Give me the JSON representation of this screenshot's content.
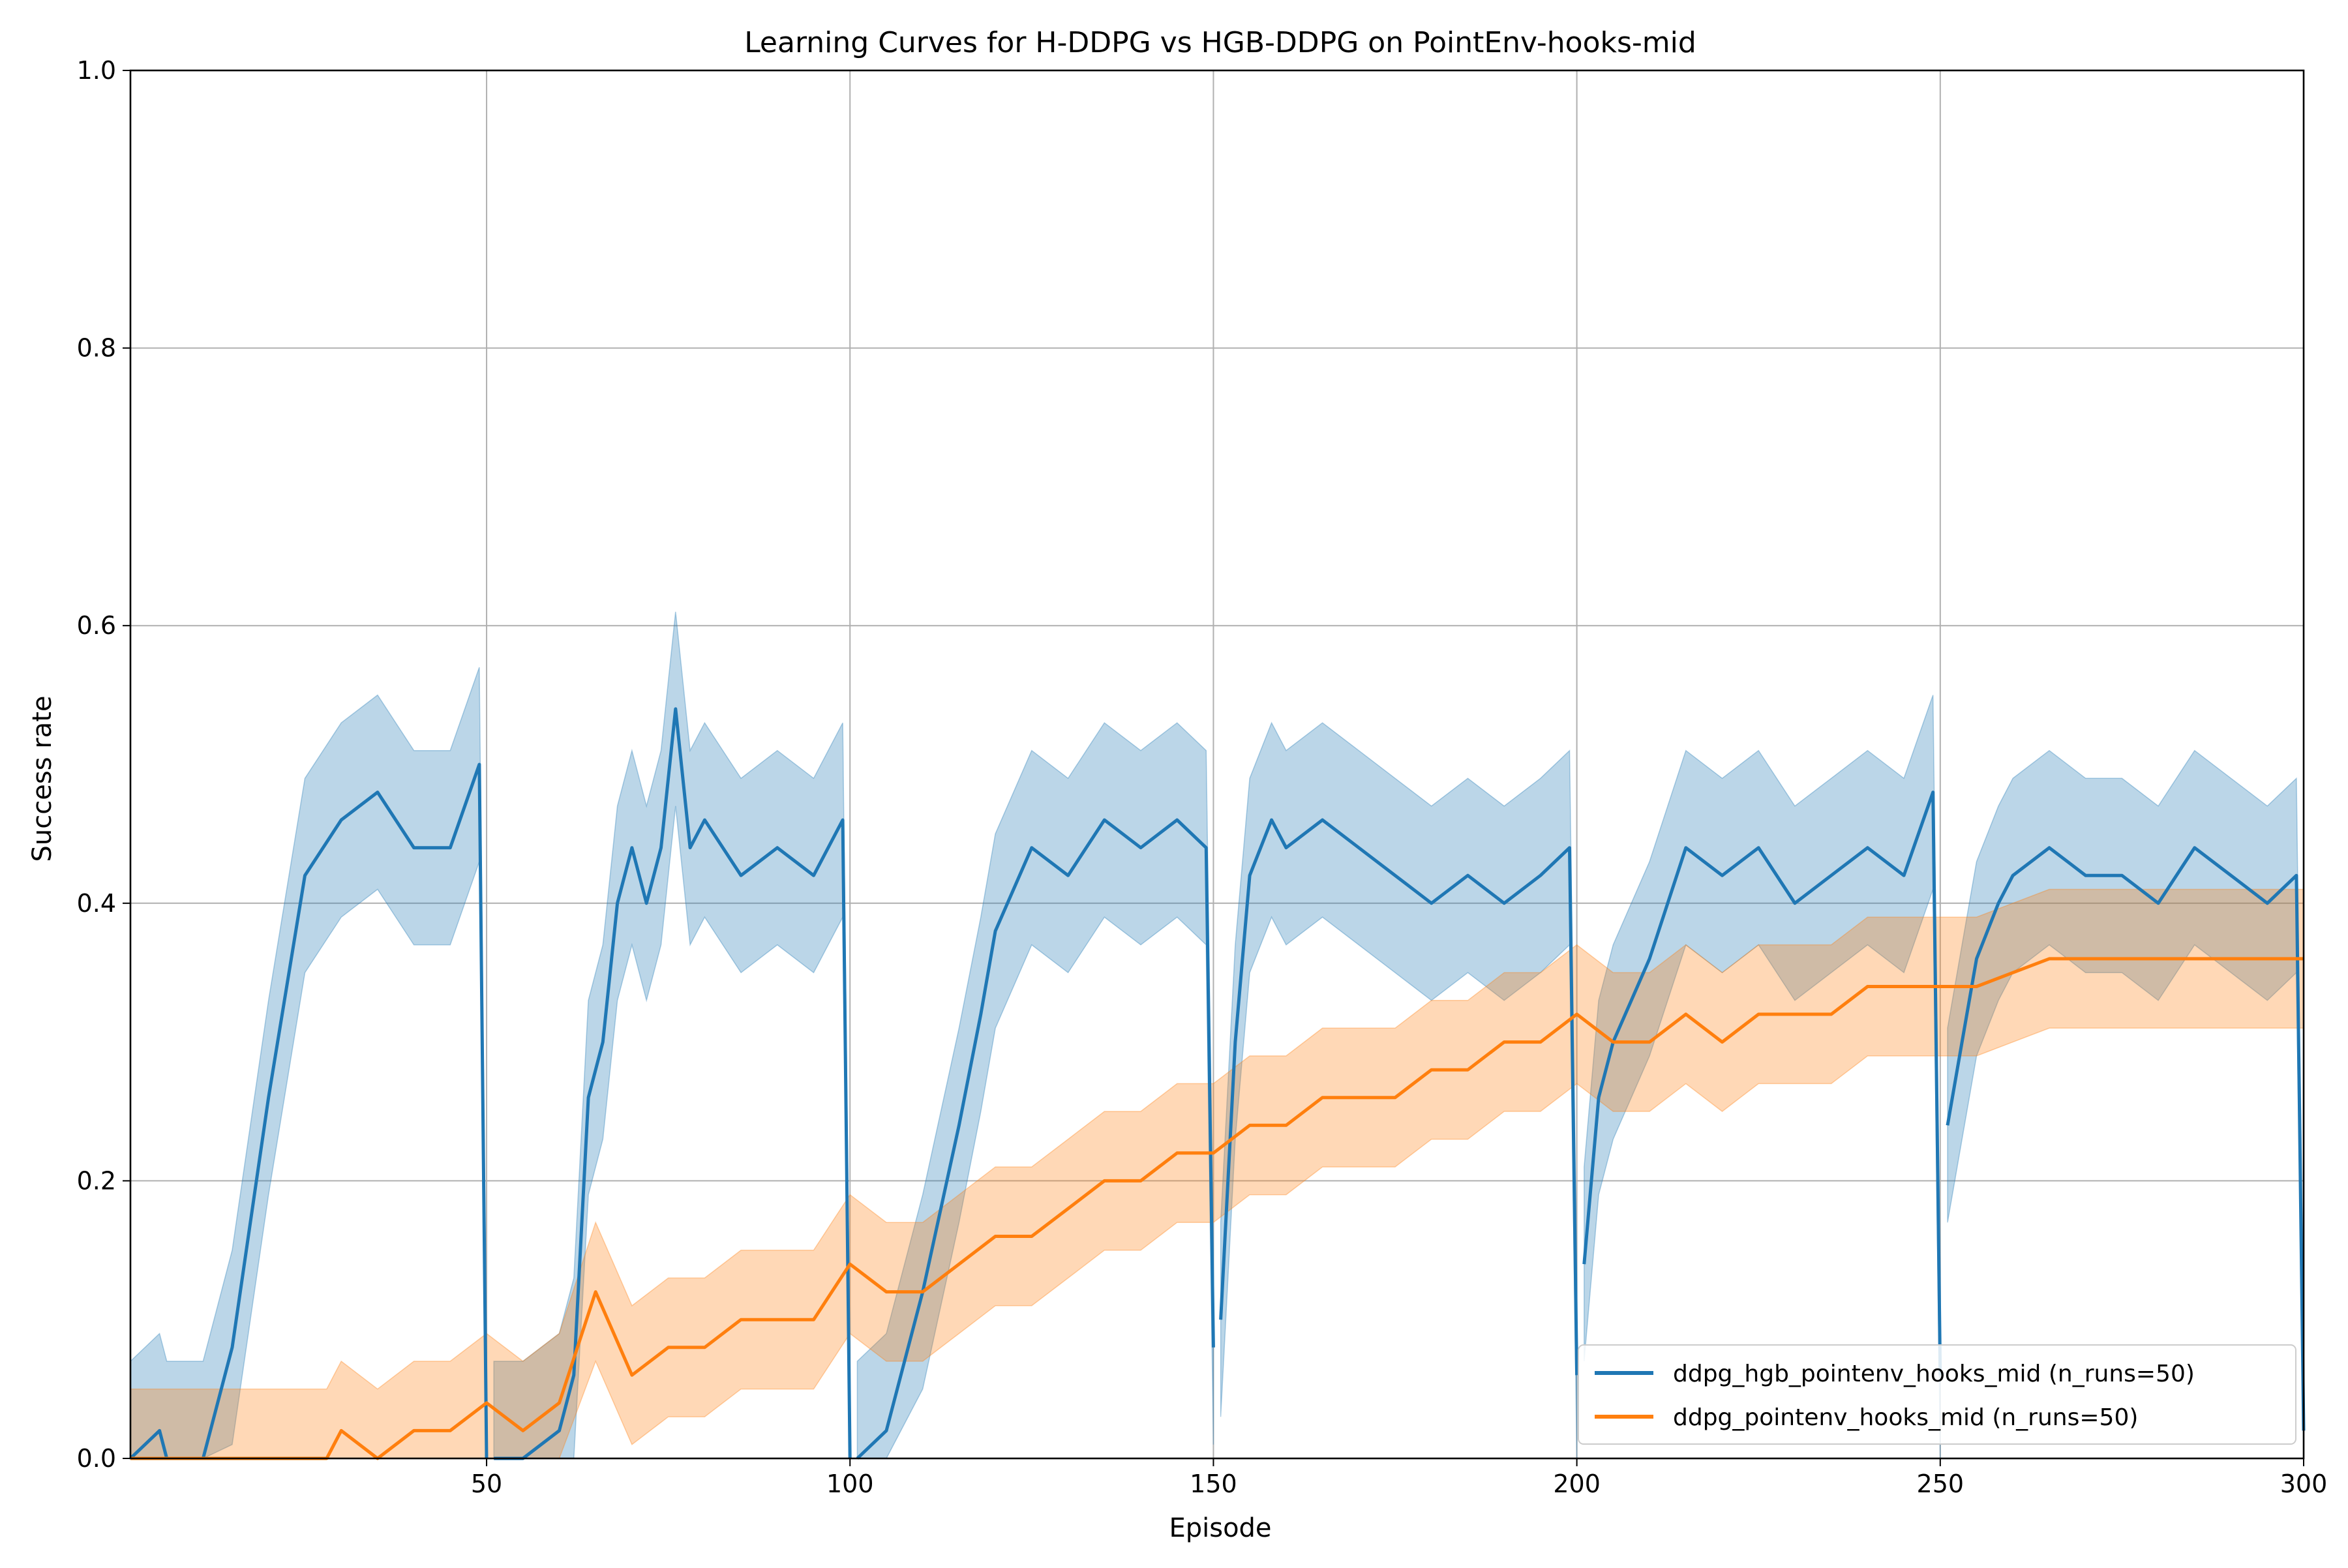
{
  "chart_data": {
    "type": "line",
    "title": "Learning Curves for H-DDPG vs HGB-DDPG on PointEnv-hooks-mid",
    "xlabel": "Episode",
    "ylabel": "Success rate",
    "xlim": [
      1,
      300
    ],
    "ylim": [
      0.0,
      1.0
    ],
    "x_ticks": [
      50,
      100,
      150,
      200,
      250,
      300
    ],
    "y_ticks": [
      0.0,
      0.2,
      0.4,
      0.6,
      0.8,
      1.0
    ],
    "x_tick_labels": [
      "50",
      "100",
      "150",
      "200",
      "250",
      "300"
    ],
    "y_tick_labels": [
      "0.0",
      "0.2",
      "0.4",
      "0.6",
      "0.8",
      "1.0"
    ],
    "grid": true,
    "legend_position": "bottom-right",
    "band_note": "shaded band = ±1 std error",
    "series": [
      {
        "name": "ddpg_hgb_pointenv_hooks_mid (n_runs=50)",
        "color": "#1f77b4",
        "segments": [
          {
            "x": [
              1,
              5,
              6,
              10,
              11,
              15,
              20,
              25,
              30,
              35,
              40,
              45,
              49,
              50
            ],
            "y": [
              0.0,
              0.02,
              0.0,
              0.0,
              0.0,
              0.08,
              0.26,
              0.42,
              0.46,
              0.48,
              0.44,
              0.44,
              0.5,
              0.0
            ]
          },
          {
            "x": [
              51,
              55,
              60,
              62,
              64,
              66,
              68,
              70,
              72,
              74,
              76,
              78,
              80,
              85,
              90,
              95,
              99,
              100
            ],
            "y": [
              0.0,
              0.0,
              0.02,
              0.06,
              0.26,
              0.3,
              0.4,
              0.44,
              0.4,
              0.44,
              0.54,
              0.44,
              0.46,
              0.42,
              0.44,
              0.42,
              0.46,
              0.0
            ]
          },
          {
            "x": [
              101,
              105,
              110,
              115,
              118,
              120,
              125,
              130,
              135,
              140,
              145,
              149,
              150
            ],
            "y": [
              0.0,
              0.02,
              0.12,
              0.24,
              0.32,
              0.38,
              0.44,
              0.42,
              0.46,
              0.44,
              0.46,
              0.44,
              0.08
            ]
          },
          {
            "x": [
              151,
              153,
              155,
              158,
              160,
              165,
              170,
              175,
              180,
              185,
              190,
              195,
              199,
              200
            ],
            "y": [
              0.1,
              0.3,
              0.42,
              0.46,
              0.44,
              0.46,
              0.44,
              0.42,
              0.4,
              0.42,
              0.4,
              0.42,
              0.44,
              0.06
            ]
          },
          {
            "x": [
              201,
              203,
              205,
              210,
              215,
              220,
              225,
              230,
              235,
              240,
              245,
              249,
              250
            ],
            "y": [
              0.14,
              0.26,
              0.3,
              0.36,
              0.44,
              0.42,
              0.44,
              0.4,
              0.42,
              0.44,
              0.42,
              0.48,
              0.06
            ]
          },
          {
            "x": [
              251,
              253,
              255,
              258,
              260,
              265,
              270,
              275,
              280,
              285,
              290,
              295,
              299,
              300
            ],
            "y": [
              0.24,
              0.3,
              0.36,
              0.4,
              0.42,
              0.44,
              0.42,
              0.42,
              0.4,
              0.44,
              0.42,
              0.4,
              0.42,
              0.02
            ]
          }
        ],
        "band_halfwidth": 0.07
      },
      {
        "name": "ddpg_pointenv_hooks_mid (n_runs=50)",
        "color": "#ff7f0e",
        "x": [
          1,
          10,
          20,
          28,
          30,
          35,
          40,
          45,
          50,
          55,
          60,
          65,
          70,
          75,
          80,
          85,
          90,
          95,
          100,
          105,
          110,
          115,
          120,
          125,
          130,
          135,
          140,
          145,
          150,
          155,
          160,
          165,
          170,
          175,
          180,
          185,
          190,
          195,
          200,
          205,
          210,
          215,
          220,
          225,
          230,
          235,
          240,
          245,
          250,
          255,
          260,
          265,
          270,
          275,
          280,
          285,
          290,
          295,
          300
        ],
        "y": [
          0.0,
          0.0,
          0.0,
          0.0,
          0.02,
          0.0,
          0.02,
          0.02,
          0.04,
          0.02,
          0.04,
          0.12,
          0.06,
          0.08,
          0.08,
          0.1,
          0.1,
          0.1,
          0.14,
          0.12,
          0.12,
          0.14,
          0.16,
          0.16,
          0.18,
          0.2,
          0.2,
          0.22,
          0.22,
          0.24,
          0.24,
          0.26,
          0.26,
          0.26,
          0.28,
          0.28,
          0.3,
          0.3,
          0.32,
          0.3,
          0.3,
          0.32,
          0.3,
          0.32,
          0.32,
          0.32,
          0.34,
          0.34,
          0.34,
          0.34,
          0.35,
          0.36,
          0.36,
          0.36,
          0.36,
          0.36,
          0.36,
          0.36,
          0.36
        ],
        "band_halfwidth": 0.05
      }
    ]
  }
}
